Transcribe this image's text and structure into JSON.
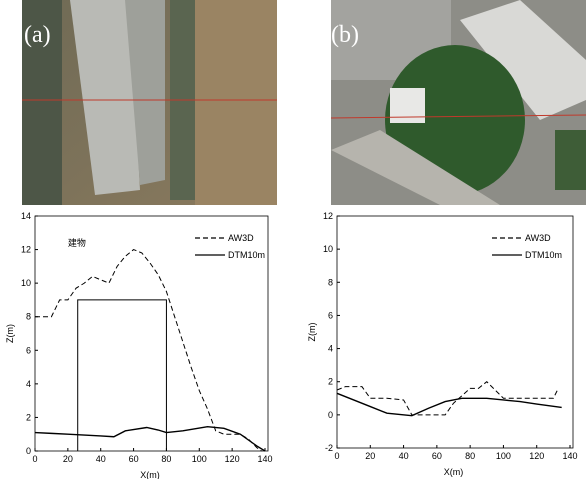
{
  "images": [
    {
      "label": "(a)"
    },
    {
      "label": "(b)"
    }
  ],
  "chart_data": [
    {
      "type": "line",
      "xlabel": "X(m)",
      "ylabel": "Z(m)",
      "annotation": "建物",
      "xlim": [
        0,
        140
      ],
      "xticks": [
        0,
        20,
        40,
        60,
        80,
        100,
        120,
        140
      ],
      "ylim": [
        0,
        14
      ],
      "yticks": [
        0,
        2,
        4,
        6,
        8,
        10,
        12,
        14
      ],
      "shapes": [
        {
          "x": [
            26,
            26,
            80,
            80
          ],
          "y": [
            0,
            9,
            9,
            0
          ]
        }
      ],
      "series": [
        {
          "name": "AW3D",
          "color": "#000000",
          "line_style": "dashed",
          "x": [
            0,
            10,
            15,
            20,
            25,
            30,
            35,
            40,
            45,
            50,
            55,
            60,
            65,
            70,
            75,
            80,
            85,
            90,
            95,
            100,
            105,
            110,
            115,
            120,
            125,
            130,
            135,
            138
          ],
          "values": [
            8,
            8,
            9,
            9,
            9.7,
            10,
            10.4,
            10.2,
            10,
            11,
            11.6,
            12,
            11.8,
            11.2,
            10.5,
            9.5,
            8,
            6.5,
            5,
            3.6,
            2.5,
            1.2,
            1,
            1,
            1,
            0.7,
            0.2,
            0
          ]
        },
        {
          "name": "DTM10m",
          "color": "#000000",
          "line_style": "solid",
          "x": [
            0,
            10,
            20,
            30,
            40,
            48,
            55,
            68,
            75,
            80,
            90,
            105,
            115,
            125,
            135,
            140
          ],
          "values": [
            1.1,
            1.05,
            1,
            0.95,
            0.9,
            0.85,
            1.2,
            1.4,
            1.25,
            1.1,
            1.2,
            1.45,
            1.35,
            1,
            0.3,
            0
          ]
        }
      ]
    },
    {
      "type": "line",
      "xlabel": "X(m)",
      "ylabel": "Z(m)",
      "xlim": [
        0,
        140
      ],
      "xticks": [
        0,
        20,
        40,
        60,
        80,
        100,
        120,
        140
      ],
      "ylim": [
        -2,
        12
      ],
      "yticks": [
        -2,
        0,
        2,
        4,
        6,
        8,
        10,
        12
      ],
      "series": [
        {
          "name": "AW3D",
          "color": "#000000",
          "line_style": "dashed",
          "x": [
            0,
            5,
            10,
            15,
            20,
            30,
            40,
            45,
            55,
            65,
            70,
            80,
            85,
            90,
            95,
            100,
            120,
            130,
            133
          ],
          "values": [
            1.5,
            1.7,
            1.7,
            1.7,
            1,
            1,
            0.9,
            0,
            0,
            0,
            0.7,
            1.6,
            1.6,
            2,
            1.5,
            1,
            1,
            1,
            1.6
          ]
        },
        {
          "name": "DTM10m",
          "color": "#000000",
          "line_style": "solid",
          "x": [
            0,
            10,
            20,
            30,
            45,
            55,
            65,
            75,
            90,
            100,
            110,
            120,
            135
          ],
          "values": [
            1.3,
            0.9,
            0.5,
            0.1,
            -0.05,
            0.4,
            0.8,
            1,
            1,
            0.9,
            0.8,
            0.65,
            0.45
          ]
        }
      ]
    }
  ]
}
